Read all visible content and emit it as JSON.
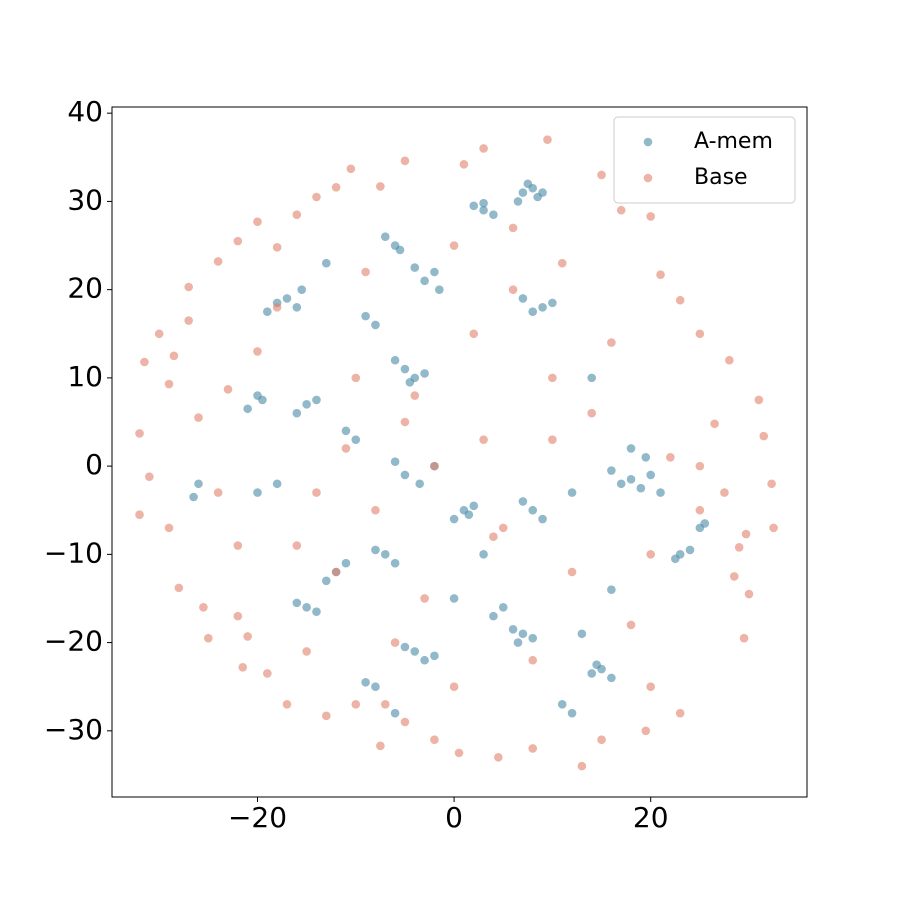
{
  "chart_data": {
    "type": "scatter",
    "xlim": [
      -34.8,
      35.9
    ],
    "ylim": [
      -37.5,
      40.7
    ],
    "xticks": [
      {
        "value": -20,
        "label": "−20"
      },
      0,
      20
    ],
    "yticks": [
      {
        "value": -30,
        "label": "−30"
      },
      {
        "value": -20,
        "label": "−20"
      },
      {
        "value": -10,
        "label": "−10"
      },
      0,
      10,
      20,
      30,
      40
    ],
    "legend": "upper right",
    "alpha": 0.6,
    "series": [
      {
        "name": "A-mem",
        "color": "#4a8aa6",
        "x": [
          7,
          8,
          8.5,
          7.5,
          9,
          6.5,
          3,
          2,
          4,
          -17,
          -18,
          -16,
          -15.5,
          -19,
          -3,
          -2,
          -4,
          -1.5,
          -6,
          -5.5,
          -7,
          9,
          8,
          10,
          7,
          -15,
          -14,
          -16,
          -20,
          -19.5,
          -21,
          -5,
          -6,
          -4,
          -3,
          -4.5,
          -2,
          -5,
          -6,
          -3.5,
          1,
          2,
          0,
          1.5,
          8,
          7,
          9,
          17,
          18,
          19,
          20,
          21,
          16,
          19.5,
          23,
          24,
          22.5,
          25,
          25.5,
          7,
          6,
          8,
          6.5,
          15,
          14.5,
          16,
          14,
          -4,
          -3,
          -5,
          -2,
          -12,
          -11,
          -13,
          -7,
          -8,
          -6,
          -15,
          -14,
          -16,
          -8,
          -9,
          3,
          -13,
          -9,
          -8,
          -18,
          -20,
          -26,
          -26.5,
          12,
          4,
          5,
          14,
          18,
          16,
          13,
          12,
          11,
          -6,
          0,
          3,
          -10,
          -11
        ],
        "values": [
          31,
          31.5,
          30.5,
          32,
          31,
          30,
          29,
          29.5,
          28.5,
          19,
          18.5,
          18,
          20,
          17.5,
          21,
          22,
          22.5,
          20,
          25,
          24.5,
          26,
          18,
          17.5,
          18.5,
          19,
          7,
          7.5,
          6,
          8,
          7.5,
          6.5,
          11,
          12,
          10,
          10.5,
          9.5,
          0,
          -1,
          0.5,
          -2,
          -5,
          -4.5,
          -6,
          -5.5,
          -5,
          -4,
          -6,
          -2,
          -1.5,
          -2.5,
          -1,
          -3,
          -0.5,
          1,
          -10,
          -9.5,
          -10.5,
          -7,
          -6.5,
          -19,
          -18.5,
          -19.5,
          -20,
          -23,
          -22.5,
          -24,
          -23.5,
          -21,
          -22,
          -20.5,
          -21.5,
          -12,
          -11,
          -13,
          -10,
          -9.5,
          -11,
          -16,
          -16.5,
          -15.5,
          -25,
          -24.5,
          29.8,
          23,
          17,
          16,
          -2,
          -3,
          -2,
          -3.5,
          -3,
          -17,
          -16,
          10,
          2,
          -14,
          -19,
          -28,
          -27,
          -28,
          -15,
          -10,
          3,
          4
        ]
      },
      {
        "name": "Base",
        "color": "#e0806a",
        "x": [
          -32,
          -32,
          -31.5,
          -30,
          -29,
          -31,
          -29,
          -28,
          -28.5,
          -27,
          -27,
          -26,
          -25.5,
          -25,
          -24,
          -23,
          -22,
          -22,
          -21.5,
          -21,
          -20,
          -19,
          -18,
          -17,
          -16,
          -15,
          -14,
          -13,
          -12,
          -10.5,
          -10,
          -7.5,
          -7.5,
          -5,
          -5,
          -2,
          1,
          0.5,
          3,
          4.5,
          8,
          9.5,
          13,
          15,
          17,
          19.5,
          20,
          21,
          23,
          23,
          25,
          28,
          28.5,
          29,
          29.5,
          30,
          31,
          31.5,
          32.3,
          32.5,
          29.7,
          26.5,
          25,
          27.5,
          22,
          20,
          15,
          -2,
          -5,
          3,
          5,
          -8,
          10,
          -10,
          6,
          -6,
          12,
          -12,
          14,
          -14,
          2,
          -3,
          8,
          -9,
          18,
          -18,
          16,
          -16,
          0,
          0,
          25,
          -24,
          -20,
          10,
          -4,
          4,
          11,
          -11,
          20,
          -22,
          6,
          -7
        ],
        "values": [
          3.7,
          -5.5,
          11.8,
          15,
          9.3,
          -1.2,
          -7,
          -13.8,
          12.5,
          20.3,
          16.5,
          5.5,
          -16,
          -19.5,
          23.2,
          8.7,
          25.5,
          -17,
          -22.8,
          -19.3,
          27.7,
          -23.5,
          24.8,
          -27,
          28.5,
          -21,
          30.5,
          -28.3,
          31.6,
          33.7,
          -27,
          -31.7,
          31.7,
          34.6,
          -29,
          -31,
          34.2,
          -32.5,
          36,
          -33,
          -32,
          37,
          -34,
          33,
          29,
          -30,
          28.3,
          21.7,
          18.8,
          -28,
          15,
          12,
          -12.5,
          -9.2,
          -19.5,
          -14.5,
          7.5,
          3.4,
          -2,
          -7,
          -7.7,
          4.8,
          -5,
          -3,
          1,
          -25,
          -31,
          0,
          5,
          3,
          -7,
          -5,
          10,
          10,
          20,
          -20,
          -12,
          -12,
          6,
          -3,
          15,
          -15,
          -22,
          22,
          -18,
          18,
          14,
          -9,
          25,
          -25,
          0,
          -3,
          13,
          3,
          8,
          -8,
          23,
          2,
          -10,
          -9,
          27,
          -27
        ]
      }
    ]
  }
}
